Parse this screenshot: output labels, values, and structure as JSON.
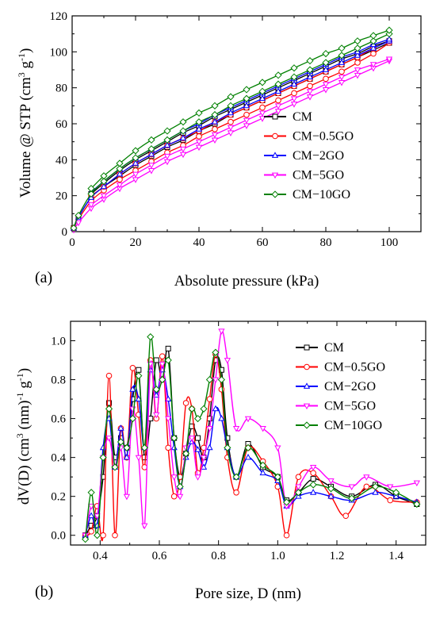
{
  "chart_data": [
    {
      "type": "line",
      "panel_label": "(a)",
      "xlabel": "Absolute pressure (kPa)",
      "ylabel": "Volume @ STP (cm3 g-1)",
      "ylabel_parts": {
        "pre": "Volume @ STP (cm",
        "sup1": "3",
        "mid": " g",
        "sup2": "-1",
        "post": ")"
      },
      "xlim": [
        0,
        110
      ],
      "ylim": [
        0,
        120
      ],
      "x_ticks": [
        0,
        20,
        40,
        60,
        80,
        100
      ],
      "y_ticks": [
        0,
        20,
        40,
        60,
        80,
        100,
        120
      ],
      "grid": false,
      "legend_position": "right",
      "series": [
        {
          "name": "CM",
          "color": "#000000",
          "marker": "square",
          "adsorption": {
            "x": [
              0.5,
              2,
              6,
              10,
              15,
              20,
              25,
              30,
              35,
              40,
              45,
              50,
              55,
              60,
              65,
              70,
              75,
              80,
              85,
              90,
              95,
              100
            ],
            "y": [
              2,
              8,
              19,
              25,
              31,
              37,
              42,
              47,
              51,
              56,
              60,
              65,
              69,
              73,
              77,
              81,
              85,
              89,
              93,
              97,
              101,
              105
            ]
          },
          "desorption": {
            "x": [
              100,
              95,
              90,
              85,
              80,
              75,
              70,
              65,
              60,
              55,
              50,
              45,
              40,
              35,
              30,
              25,
              20,
              15,
              10,
              6
            ],
            "y": [
              106,
              103,
              99,
              96,
              92,
              88,
              84,
              80,
              76,
              72,
              68,
              64,
              59,
              55,
              50,
              45,
              40,
              34,
              27,
              21
            ]
          }
        },
        {
          "name": "CM−0.5GO",
          "color": "#ff0000",
          "marker": "circle",
          "adsorption": {
            "x": [
              0.5,
              2,
              6,
              10,
              15,
              20,
              25,
              30,
              35,
              40,
              45,
              50,
              55,
              60,
              65,
              70,
              75,
              80,
              85,
              90,
              95,
              100
            ],
            "y": [
              2,
              7,
              17,
              23,
              29,
              34,
              39,
              44,
              48,
              53,
              57,
              61,
              65,
              69,
              73,
              77,
              81,
              85,
              89,
              94,
              99,
              105
            ]
          },
          "desorption": {
            "x": [
              100,
              95,
              90,
              85,
              80,
              75,
              70,
              65,
              60,
              55,
              50,
              45,
              40,
              35,
              30,
              25,
              20,
              15,
              10,
              6
            ],
            "y": [
              106,
              102,
              97,
              93,
              89,
              85,
              81,
              77,
              73,
              69,
              65,
              61,
              56,
              52,
              48,
              43,
              38,
              32,
              25,
              20
            ]
          }
        },
        {
          "name": "CM−2GO",
          "color": "#0000ff",
          "marker": "triangle-up",
          "adsorption": {
            "x": [
              0.5,
              2,
              6,
              10,
              15,
              20,
              25,
              30,
              35,
              40,
              45,
              50,
              55,
              60,
              65,
              70,
              75,
              80,
              85,
              90,
              95,
              100
            ],
            "y": [
              2,
              8,
              19,
              25,
              32,
              38,
              43,
              48,
              52,
              57,
              61,
              66,
              70,
              74,
              78,
              82,
              86,
              90,
              94,
              98,
              102,
              106
            ]
          },
          "desorption": {
            "x": [
              100,
              95,
              90,
              85,
              80,
              75,
              70,
              65,
              60,
              55,
              50,
              45,
              40,
              35,
              30,
              25,
              20,
              15,
              10,
              6
            ],
            "y": [
              107,
              104,
              100,
              97,
              93,
              89,
              85,
              81,
              77,
              73,
              69,
              65,
              60,
              56,
              51,
              46,
              41,
              35,
              28,
              22
            ]
          }
        },
        {
          "name": "CM−5GO",
          "color": "#ff00ff",
          "marker": "triangle-down",
          "adsorption": {
            "x": [
              0.5,
              2,
              6,
              10,
              15,
              20,
              25,
              30,
              35,
              40,
              45,
              50,
              55,
              60,
              65,
              70,
              75,
              80,
              85,
              90,
              95,
              100
            ],
            "y": [
              1,
              5,
              13,
              18,
              24,
              29,
              34,
              39,
              43,
              47,
              51,
              55,
              59,
              63,
              67,
              71,
              75,
              79,
              83,
              87,
              91,
              95
            ]
          },
          "desorption": {
            "x": [
              100,
              95,
              90,
              85,
              80,
              75,
              70,
              65,
              60,
              55,
              50,
              45,
              40,
              35,
              30,
              25,
              20,
              15,
              10,
              6
            ],
            "y": [
              96,
              93,
              90,
              86,
              82,
              78,
              74,
              70,
              66,
              62,
              58,
              54,
              50,
              46,
              42,
              37,
              32,
              26,
              20,
              15
            ]
          }
        },
        {
          "name": "CM−10GO",
          "color": "#008000",
          "marker": "diamond",
          "adsorption": {
            "x": [
              0.5,
              2,
              6,
              10,
              15,
              20,
              25,
              30,
              35,
              40,
              45,
              50,
              55,
              60,
              65,
              70,
              75,
              80,
              85,
              90,
              95,
              100
            ],
            "y": [
              2,
              9,
              21,
              28,
              35,
              41,
              46,
              51,
              56,
              61,
              65,
              70,
              74,
              78,
              82,
              86,
              90,
              94,
              98,
              102,
              106,
              110
            ]
          },
          "desorption": {
            "x": [
              100,
              95,
              90,
              85,
              80,
              75,
              70,
              65,
              60,
              55,
              50,
              45,
              40,
              35,
              30,
              25,
              20,
              15,
              10,
              6
            ],
            "y": [
              112,
              109,
              106,
              102,
              99,
              95,
              91,
              87,
              83,
              79,
              75,
              70,
              66,
              61,
              56,
              51,
              45,
              38,
              31,
              24
            ]
          }
        }
      ]
    },
    {
      "type": "line",
      "panel_label": "(b)",
      "xlabel": "Pore size, D (nm)",
      "ylabel": "dV(D) (cm3 (nm)-1 g-1)",
      "ylabel_parts": {
        "pre": "dV(D) (cm",
        "sup1": "3",
        "mid": " (nm)",
        "sup2": "-1",
        "mid2": " g",
        "sup3": "-1",
        "post": ")"
      },
      "xlim": [
        0.3,
        1.5
      ],
      "ylim": [
        -0.05,
        1.1
      ],
      "x_ticks": [
        0.4,
        0.6,
        0.8,
        1.0,
        1.2,
        1.4
      ],
      "y_ticks": [
        0.0,
        0.2,
        0.4,
        0.6,
        0.8,
        1.0
      ],
      "grid": false,
      "legend_position": "top-right",
      "series": [
        {
          "name": "CM",
          "color": "#000000",
          "marker": "square",
          "x": [
            0.35,
            0.37,
            0.39,
            0.41,
            0.43,
            0.45,
            0.47,
            0.49,
            0.51,
            0.53,
            0.55,
            0.57,
            0.59,
            0.61,
            0.63,
            0.65,
            0.67,
            0.69,
            0.71,
            0.73,
            0.75,
            0.77,
            0.79,
            0.81,
            0.83,
            0.86,
            0.9,
            0.95,
            1.0,
            1.03,
            1.07,
            1.12,
            1.18,
            1.25,
            1.33,
            1.4,
            1.47
          ],
          "y": [
            0.0,
            0.05,
            0.1,
            0.3,
            0.68,
            0.4,
            0.5,
            0.45,
            0.7,
            0.85,
            0.4,
            0.6,
            0.9,
            0.8,
            0.96,
            0.5,
            0.3,
            0.42,
            0.56,
            0.5,
            0.4,
            0.6,
            0.9,
            0.85,
            0.5,
            0.3,
            0.47,
            0.35,
            0.3,
            0.18,
            0.22,
            0.29,
            0.25,
            0.2,
            0.26,
            0.2,
            0.16
          ]
        },
        {
          "name": "CM−0.5GO",
          "color": "#ff0000",
          "marker": "circle",
          "x": [
            0.35,
            0.37,
            0.39,
            0.41,
            0.43,
            0.45,
            0.47,
            0.49,
            0.51,
            0.53,
            0.55,
            0.57,
            0.59,
            0.61,
            0.63,
            0.65,
            0.67,
            0.69,
            0.71,
            0.73,
            0.75,
            0.77,
            0.79,
            0.81,
            0.83,
            0.86,
            0.9,
            0.95,
            1.0,
            1.03,
            1.07,
            1.12,
            1.18,
            1.23,
            1.3,
            1.38,
            1.47
          ],
          "y": [
            0.0,
            0.02,
            0.15,
            0.0,
            0.82,
            0.0,
            0.55,
            0.4,
            0.86,
            0.62,
            0.35,
            0.9,
            0.6,
            0.92,
            0.45,
            0.2,
            0.3,
            0.68,
            0.65,
            0.32,
            0.45,
            0.7,
            0.93,
            0.75,
            0.4,
            0.22,
            0.45,
            0.38,
            0.25,
            0.0,
            0.3,
            0.32,
            0.2,
            0.1,
            0.25,
            0.18,
            0.17
          ]
        },
        {
          "name": "CM−2GO",
          "color": "#0000ff",
          "marker": "triangle-up",
          "x": [
            0.35,
            0.37,
            0.39,
            0.41,
            0.43,
            0.45,
            0.47,
            0.49,
            0.51,
            0.53,
            0.55,
            0.57,
            0.59,
            0.61,
            0.63,
            0.65,
            0.67,
            0.69,
            0.71,
            0.73,
            0.75,
            0.77,
            0.79,
            0.81,
            0.83,
            0.86,
            0.9,
            0.95,
            1.0,
            1.03,
            1.07,
            1.12,
            1.18,
            1.25,
            1.33,
            1.4,
            1.47
          ],
          "y": [
            0.0,
            0.1,
            0.05,
            0.45,
            0.6,
            0.35,
            0.55,
            0.4,
            0.75,
            0.7,
            0.45,
            0.85,
            0.72,
            0.85,
            0.7,
            0.45,
            0.25,
            0.4,
            0.48,
            0.44,
            0.35,
            0.45,
            0.65,
            0.6,
            0.45,
            0.3,
            0.4,
            0.32,
            0.28,
            0.15,
            0.2,
            0.22,
            0.2,
            0.18,
            0.22,
            0.2,
            0.17
          ]
        },
        {
          "name": "CM−5GO",
          "color": "#ff00ff",
          "marker": "triangle-down",
          "x": [
            0.35,
            0.37,
            0.39,
            0.41,
            0.43,
            0.45,
            0.47,
            0.49,
            0.51,
            0.53,
            0.55,
            0.57,
            0.59,
            0.61,
            0.63,
            0.65,
            0.67,
            0.69,
            0.71,
            0.73,
            0.75,
            0.77,
            0.79,
            0.81,
            0.83,
            0.86,
            0.9,
            0.95,
            1.0,
            1.03,
            1.07,
            1.12,
            1.18,
            1.25,
            1.3,
            1.38,
            1.47
          ],
          "y": [
            0.0,
            0.15,
            0.1,
            0.4,
            0.5,
            0.35,
            0.45,
            0.2,
            0.65,
            0.4,
            0.05,
            0.88,
            0.62,
            0.88,
            0.6,
            0.3,
            0.2,
            0.45,
            0.5,
            0.3,
            0.4,
            0.55,
            0.8,
            1.05,
            0.9,
            0.55,
            0.6,
            0.55,
            0.45,
            0.15,
            0.25,
            0.35,
            0.28,
            0.25,
            0.3,
            0.25,
            0.27
          ]
        },
        {
          "name": "CM−10GO",
          "color": "#008000",
          "marker": "diamond",
          "x": [
            0.35,
            0.37,
            0.39,
            0.41,
            0.43,
            0.45,
            0.47,
            0.49,
            0.51,
            0.53,
            0.55,
            0.57,
            0.59,
            0.61,
            0.63,
            0.65,
            0.67,
            0.69,
            0.71,
            0.73,
            0.75,
            0.77,
            0.79,
            0.81,
            0.83,
            0.86,
            0.9,
            0.95,
            1.0,
            1.03,
            1.07,
            1.12,
            1.18,
            1.25,
            1.33,
            1.4,
            1.47
          ],
          "y": [
            -0.02,
            0.22,
            0.0,
            0.4,
            0.65,
            0.35,
            0.48,
            0.45,
            0.6,
            0.82,
            0.45,
            1.02,
            0.75,
            0.8,
            0.9,
            0.5,
            0.25,
            0.42,
            0.65,
            0.6,
            0.65,
            0.8,
            0.94,
            0.8,
            0.45,
            0.3,
            0.45,
            0.36,
            0.3,
            0.17,
            0.22,
            0.26,
            0.24,
            0.19,
            0.25,
            0.22,
            0.16
          ]
        }
      ]
    }
  ]
}
